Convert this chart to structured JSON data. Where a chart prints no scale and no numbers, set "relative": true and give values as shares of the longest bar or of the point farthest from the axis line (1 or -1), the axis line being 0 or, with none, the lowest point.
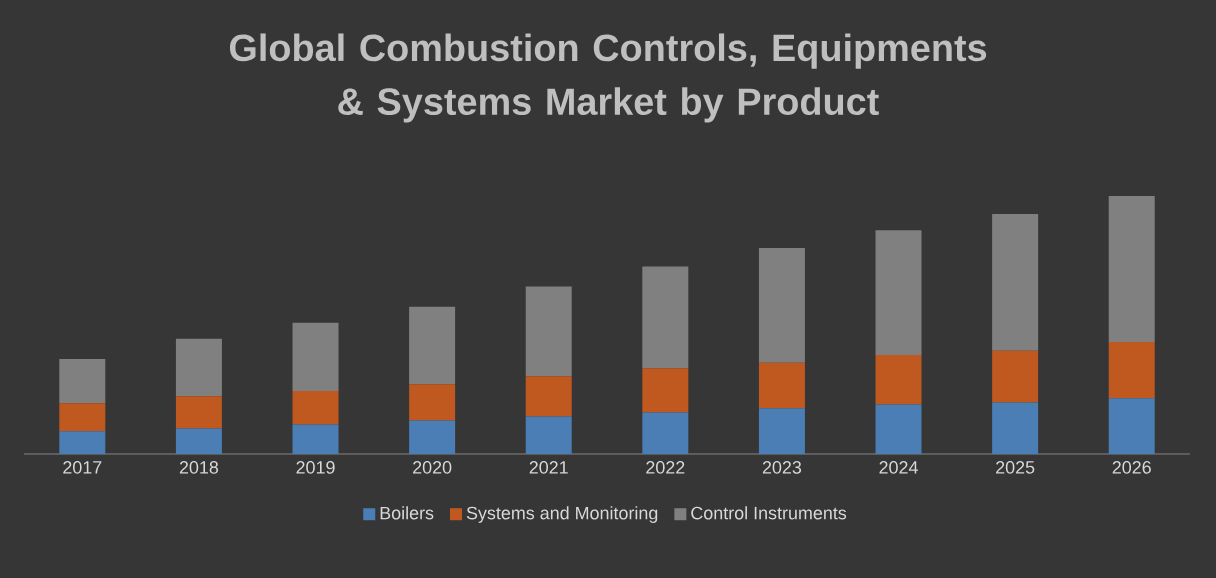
{
  "chart_data": {
    "type": "bar",
    "title": "Global Combustion Controls, Equipments & Systems Market by Product",
    "categories": [
      "2017",
      "2018",
      "2019",
      "2020",
      "2021",
      "2022",
      "2023",
      "2024",
      "2025",
      "2026"
    ],
    "stacked": true,
    "relative": true,
    "legend": "bottom",
    "series": [
      {
        "name": "Boilers",
        "color": "#4a7eb5",
        "values": [
          0.088,
          0.099,
          0.114,
          0.13,
          0.145,
          0.161,
          0.177,
          0.192,
          0.2,
          0.216
        ]
      },
      {
        "name": "Systems and Monitoring",
        "color": "#c0591f",
        "values": [
          0.109,
          0.125,
          0.13,
          0.14,
          0.156,
          0.171,
          0.177,
          0.192,
          0.2,
          0.218
        ]
      },
      {
        "name": "Control Instruments",
        "color": "#808080",
        "values": [
          0.171,
          0.223,
          0.265,
          0.301,
          0.348,
          0.395,
          0.444,
          0.483,
          0.53,
          0.566
        ]
      }
    ]
  }
}
